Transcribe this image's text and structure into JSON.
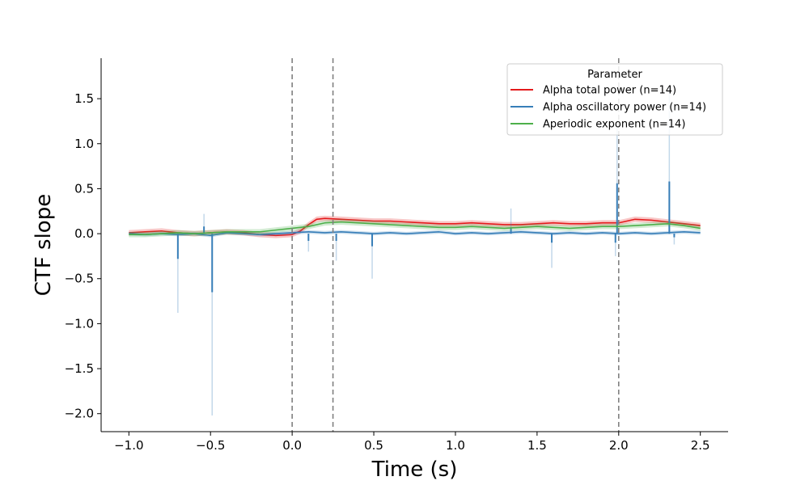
{
  "chart_data": {
    "type": "line",
    "title": "",
    "xlabel": "Time (s)",
    "ylabel": "CTF slope",
    "xlim": [
      -1.17,
      2.67
    ],
    "ylim": [
      -2.2,
      1.95
    ],
    "grid": false,
    "x_ticks": [
      -1.0,
      -0.5,
      0.0,
      0.5,
      1.0,
      1.5,
      2.0,
      2.5
    ],
    "x_tick_labels": [
      "−1.0",
      "−0.5",
      "0.0",
      "0.5",
      "1.0",
      "1.5",
      "2.0",
      "2.5"
    ],
    "y_ticks": [
      -2.0,
      -1.5,
      -1.0,
      -0.5,
      0.0,
      0.5,
      1.0,
      1.5
    ],
    "y_tick_labels": [
      "−2.0",
      "−1.5",
      "−1.0",
      "−0.5",
      "0.0",
      "0.5",
      "1.0",
      "1.5"
    ],
    "vlines": [
      0.0,
      0.25,
      2.0
    ],
    "vline_color": "#808080",
    "legend": {
      "title": "Parameter",
      "placement": "top-right"
    },
    "series": [
      {
        "name": "Alpha total power (n=14)",
        "color": "#e41a1c",
        "x": [
          -1.0,
          -0.9,
          -0.8,
          -0.7,
          -0.6,
          -0.5,
          -0.4,
          -0.3,
          -0.2,
          -0.1,
          0.0,
          0.05,
          0.1,
          0.15,
          0.2,
          0.3,
          0.4,
          0.5,
          0.6,
          0.7,
          0.8,
          0.9,
          1.0,
          1.1,
          1.2,
          1.3,
          1.4,
          1.5,
          1.6,
          1.7,
          1.8,
          1.9,
          2.0,
          2.1,
          2.2,
          2.3,
          2.4,
          2.5
        ],
        "y": [
          0.01,
          0.02,
          0.03,
          0.01,
          0.0,
          0.01,
          0.02,
          0.01,
          -0.01,
          -0.02,
          -0.01,
          0.03,
          0.1,
          0.16,
          0.17,
          0.16,
          0.15,
          0.14,
          0.14,
          0.13,
          0.12,
          0.11,
          0.11,
          0.12,
          0.11,
          0.1,
          0.1,
          0.11,
          0.12,
          0.11,
          0.11,
          0.12,
          0.12,
          0.16,
          0.15,
          0.13,
          0.11,
          0.09
        ],
        "ci": 0.03
      },
      {
        "name": "Alpha oscillatory power (n=14)",
        "color": "#377eb8",
        "x": [
          -1.0,
          -0.9,
          -0.8,
          -0.7,
          -0.6,
          -0.5,
          -0.4,
          -0.3,
          -0.2,
          -0.1,
          0.0,
          0.1,
          0.2,
          0.3,
          0.4,
          0.5,
          0.6,
          0.7,
          0.8,
          0.9,
          1.0,
          1.1,
          1.2,
          1.3,
          1.4,
          1.5,
          1.6,
          1.7,
          1.8,
          1.9,
          2.0,
          2.1,
          2.2,
          2.3,
          2.4,
          2.5
        ],
        "y": [
          0.0,
          -0.01,
          0.0,
          -0.01,
          0.0,
          -0.02,
          0.01,
          0.0,
          -0.01,
          0.0,
          0.01,
          0.02,
          0.01,
          0.02,
          0.01,
          0.0,
          0.01,
          0.0,
          0.01,
          0.02,
          0.0,
          0.01,
          0.0,
          0.01,
          0.02,
          0.01,
          0.0,
          0.01,
          0.0,
          0.01,
          0.0,
          0.01,
          0.0,
          0.01,
          0.02,
          0.01
        ],
        "ci": 0.02,
        "spikes": [
          {
            "x": -0.7,
            "mean": -0.28,
            "ci": -0.88
          },
          {
            "x": -0.54,
            "mean": 0.08,
            "ci": 0.22
          },
          {
            "x": -0.49,
            "mean": -0.65,
            "ci": -2.02
          },
          {
            "x": 0.1,
            "mean": -0.08,
            "ci": -0.2
          },
          {
            "x": 0.27,
            "mean": -0.08,
            "ci": -0.3
          },
          {
            "x": 0.49,
            "mean": -0.14,
            "ci": -0.5
          },
          {
            "x": 1.34,
            "mean": 0.06,
            "ci": 0.28
          },
          {
            "x": 1.59,
            "mean": -0.1,
            "ci": -0.38
          },
          {
            "x": 1.99,
            "mean": 0.56,
            "ci": 1.2
          },
          {
            "x": 1.98,
            "mean": -0.1,
            "ci": -0.25
          },
          {
            "x": 2.31,
            "mean": 0.58,
            "ci": 1.65
          },
          {
            "x": 2.34,
            "mean": -0.04,
            "ci": -0.12
          }
        ]
      },
      {
        "name": "Aperiodic exponent (n=14)",
        "color": "#4daf4a",
        "x": [
          -1.0,
          -0.9,
          -0.8,
          -0.7,
          -0.6,
          -0.5,
          -0.4,
          -0.3,
          -0.2,
          -0.1,
          0.0,
          0.1,
          0.2,
          0.3,
          0.4,
          0.5,
          0.6,
          0.7,
          0.8,
          0.9,
          1.0,
          1.1,
          1.2,
          1.3,
          1.4,
          1.5,
          1.6,
          1.7,
          1.8,
          1.9,
          2.0,
          2.1,
          2.2,
          2.3,
          2.4,
          2.5
        ],
        "y": [
          -0.01,
          -0.01,
          0.0,
          0.01,
          0.0,
          0.01,
          0.02,
          0.02,
          0.02,
          0.04,
          0.06,
          0.08,
          0.12,
          0.13,
          0.12,
          0.11,
          0.1,
          0.09,
          0.08,
          0.07,
          0.07,
          0.08,
          0.07,
          0.06,
          0.07,
          0.08,
          0.07,
          0.06,
          0.07,
          0.08,
          0.08,
          0.09,
          0.1,
          0.11,
          0.09,
          0.06
        ],
        "ci": 0.03
      }
    ]
  }
}
